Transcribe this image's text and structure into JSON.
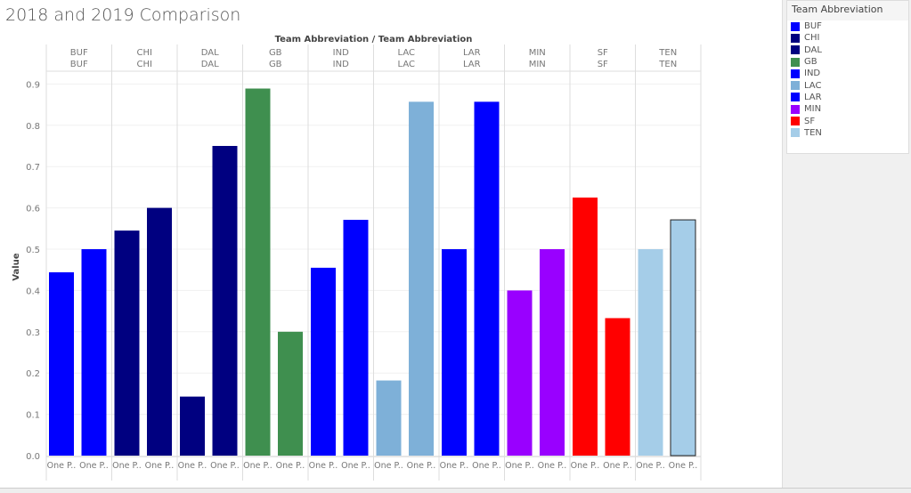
{
  "title": "2018 and 2019 Comparison",
  "legend": {
    "title": "Team Abbreviation"
  },
  "chart_data": {
    "type": "bar",
    "title": "2018 and 2019 Comparison",
    "column_header": "Team Abbreviation / Team Abbreviation",
    "ylabel": "Value",
    "ylim": [
      0,
      0.9
    ],
    "yticks": [
      "0.0",
      "0.1",
      "0.2",
      "0.3",
      "0.4",
      "0.5",
      "0.6",
      "0.7",
      "0.8",
      "0.9"
    ],
    "bar_label": "One P..",
    "categories": [
      "BUF",
      "CHI",
      "DAL",
      "GB",
      "IND",
      "LAC",
      "LAR",
      "MIN",
      "SF",
      "TEN"
    ],
    "colors": {
      "BUF": "#0000ff",
      "CHI": "#000080",
      "DAL": "#000080",
      "GB": "#3f8f4f",
      "IND": "#0000ff",
      "LAC": "#7eb0d8",
      "LAR": "#0000ff",
      "MIN": "#9900ff",
      "SF": "#ff0000",
      "TEN": "#a5cde8"
    },
    "values": [
      [
        0.444,
        0.5
      ],
      [
        0.545,
        0.6
      ],
      [
        0.143,
        0.75
      ],
      [
        0.889,
        0.3
      ],
      [
        0.455,
        0.571
      ],
      [
        0.182,
        0.857
      ],
      [
        0.5,
        0.857
      ],
      [
        0.4,
        0.5
      ],
      [
        0.625,
        0.333
      ],
      [
        0.5,
        0.571
      ]
    ],
    "legend_position": "top-right"
  }
}
